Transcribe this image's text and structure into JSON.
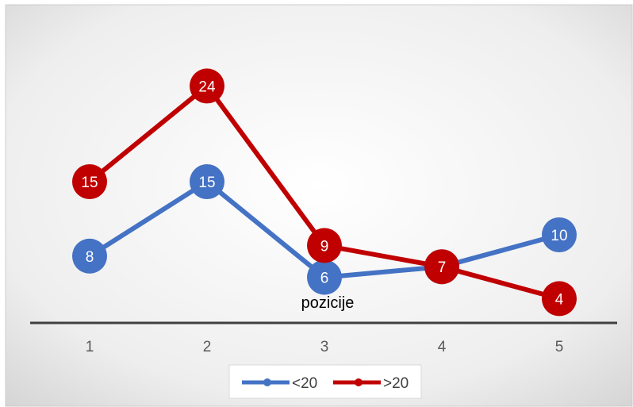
{
  "chart_data": {
    "type": "line",
    "categories": [
      "1",
      "2",
      "3",
      "4",
      "5"
    ],
    "series": [
      {
        "name": "<20",
        "values": [
          8,
          15,
          6,
          7,
          10
        ],
        "color": "#4472C4"
      },
      {
        "name": ">20",
        "values": [
          15,
          24,
          9,
          7,
          4
        ],
        "color": "#C00000"
      }
    ],
    "title": "",
    "annotation": "pozicije",
    "xlabel": "",
    "ylabel": "",
    "ylim": [
      0,
      30
    ],
    "grid": false,
    "legend": "bottom"
  }
}
